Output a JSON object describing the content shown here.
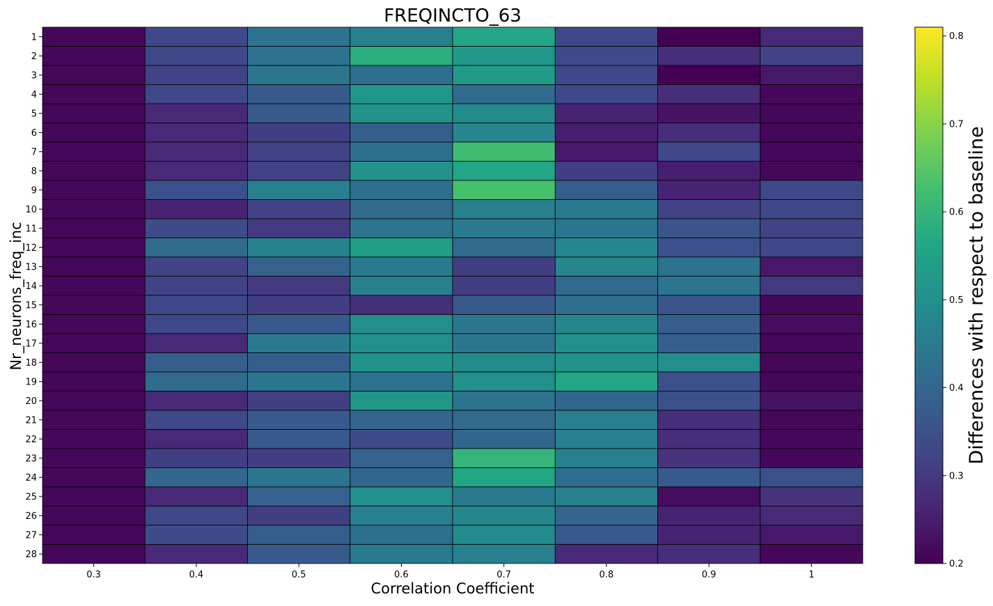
{
  "chart_data": {
    "type": "heatmap",
    "title": "FREQINCTO_63",
    "xlabel": "Correlation Coefficient",
    "ylabel": "Nr_neurons_freq_inc",
    "colorbar_label": "Differences with respect to baseline",
    "colormap": "viridis",
    "x_categories": [
      "0.3",
      "0.4",
      "0.5",
      "0.6",
      "0.7",
      "0.8",
      "0.9",
      "1"
    ],
    "y_categories": [
      "1",
      "2",
      "3",
      "4",
      "5",
      "6",
      "7",
      "8",
      "9",
      "10",
      "11",
      "12",
      "13",
      "14",
      "15",
      "16",
      "17",
      "18",
      "19",
      "20",
      "21",
      "22",
      "23",
      "24",
      "25",
      "26",
      "27",
      "28"
    ],
    "vmin": 0.2,
    "vmax": 0.81,
    "colorbar_ticks": [
      "0.2",
      "0.3",
      "0.4",
      "0.5",
      "0.6",
      "0.7",
      "0.8"
    ],
    "values": [
      [
        0.21,
        0.33,
        0.43,
        0.46,
        0.56,
        0.33,
        0.2,
        0.27
      ],
      [
        0.21,
        0.33,
        0.43,
        0.58,
        0.52,
        0.34,
        0.28,
        0.32
      ],
      [
        0.21,
        0.32,
        0.44,
        0.42,
        0.53,
        0.33,
        0.2,
        0.24
      ],
      [
        0.21,
        0.33,
        0.37,
        0.52,
        0.41,
        0.33,
        0.28,
        0.21
      ],
      [
        0.21,
        0.27,
        0.37,
        0.51,
        0.49,
        0.26,
        0.23,
        0.21
      ],
      [
        0.21,
        0.27,
        0.31,
        0.38,
        0.48,
        0.25,
        0.28,
        0.21
      ],
      [
        0.21,
        0.27,
        0.32,
        0.42,
        0.62,
        0.24,
        0.33,
        0.21
      ],
      [
        0.21,
        0.27,
        0.32,
        0.51,
        0.56,
        0.31,
        0.25,
        0.21
      ],
      [
        0.21,
        0.35,
        0.46,
        0.42,
        0.63,
        0.38,
        0.26,
        0.33
      ],
      [
        0.21,
        0.26,
        0.32,
        0.41,
        0.46,
        0.45,
        0.32,
        0.33
      ],
      [
        0.21,
        0.34,
        0.3,
        0.44,
        0.45,
        0.44,
        0.36,
        0.32
      ],
      [
        0.21,
        0.41,
        0.47,
        0.54,
        0.41,
        0.48,
        0.35,
        0.33
      ],
      [
        0.21,
        0.32,
        0.39,
        0.45,
        0.31,
        0.48,
        0.43,
        0.24
      ],
      [
        0.21,
        0.32,
        0.3,
        0.46,
        0.31,
        0.41,
        0.44,
        0.3
      ],
      [
        0.21,
        0.33,
        0.31,
        0.28,
        0.37,
        0.42,
        0.36,
        0.21
      ],
      [
        0.21,
        0.33,
        0.37,
        0.5,
        0.44,
        0.48,
        0.38,
        0.22
      ],
      [
        0.21,
        0.27,
        0.45,
        0.5,
        0.44,
        0.5,
        0.38,
        0.21
      ],
      [
        0.21,
        0.38,
        0.38,
        0.51,
        0.49,
        0.51,
        0.5,
        0.21
      ],
      [
        0.21,
        0.41,
        0.44,
        0.43,
        0.5,
        0.56,
        0.35,
        0.21
      ],
      [
        0.21,
        0.27,
        0.31,
        0.52,
        0.43,
        0.4,
        0.35,
        0.23
      ],
      [
        0.21,
        0.33,
        0.37,
        0.4,
        0.41,
        0.46,
        0.28,
        0.21
      ],
      [
        0.21,
        0.27,
        0.37,
        0.34,
        0.4,
        0.46,
        0.28,
        0.21
      ],
      [
        0.21,
        0.31,
        0.31,
        0.39,
        0.6,
        0.46,
        0.29,
        0.21
      ],
      [
        0.21,
        0.4,
        0.44,
        0.4,
        0.56,
        0.42,
        0.37,
        0.35
      ],
      [
        0.21,
        0.27,
        0.39,
        0.5,
        0.45,
        0.46,
        0.22,
        0.29
      ],
      [
        0.21,
        0.33,
        0.31,
        0.46,
        0.48,
        0.4,
        0.26,
        0.27
      ],
      [
        0.21,
        0.34,
        0.38,
        0.42,
        0.49,
        0.37,
        0.26,
        0.24
      ],
      [
        0.21,
        0.27,
        0.37,
        0.45,
        0.46,
        0.27,
        0.28,
        0.21
      ]
    ],
    "grid": false,
    "legend": "colorbar-right"
  }
}
